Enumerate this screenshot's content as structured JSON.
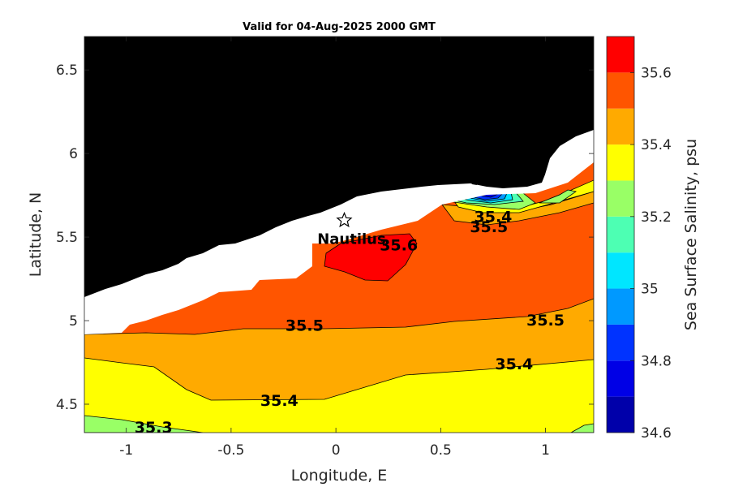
{
  "chart_data": {
    "type": "heatmap",
    "subtype": "filled-contour map",
    "title": "Valid for 04-Aug-2025 2000 GMT",
    "xlabel": "Longitude, E",
    "ylabel": "Latitude, N",
    "xlim": [
      -1.2,
      1.23
    ],
    "ylim": [
      4.33,
      6.7
    ],
    "xticks": [
      -1,
      -0.5,
      0,
      0.5,
      1
    ],
    "xtick_labels": [
      "-1",
      "-0.5",
      "0",
      "0.5",
      "1"
    ],
    "yticks": [
      4.5,
      5,
      5.5,
      6,
      6.5
    ],
    "ytick_labels": [
      "4.5",
      "5",
      "5.5",
      "6",
      "6.5"
    ],
    "land_color": "#000000",
    "grid": false,
    "colorbar": {
      "label": "Sea Surface Salinity, psu",
      "range": [
        34.6,
        35.7
      ],
      "ticks": [
        34.6,
        34.8,
        35,
        35.2,
        35.4,
        35.6
      ],
      "tick_labels": [
        "34.6",
        "34.8",
        "35",
        "35.2",
        "35.4",
        "35.6"
      ],
      "levels": [
        {
          "from": 34.6,
          "to": 34.7,
          "color": "#0000aa"
        },
        {
          "from": 34.7,
          "to": 34.8,
          "color": "#0000e6"
        },
        {
          "from": 34.8,
          "to": 34.9,
          "color": "#0033ff"
        },
        {
          "from": 34.9,
          "to": 35.0,
          "color": "#0099ff"
        },
        {
          "from": 35.0,
          "to": 35.1,
          "color": "#00e6ff"
        },
        {
          "from": 35.1,
          "to": 35.2,
          "color": "#4dffb3"
        },
        {
          "from": 35.2,
          "to": 35.3,
          "color": "#99ff66"
        },
        {
          "from": 35.3,
          "to": 35.4,
          "color": "#ffff00"
        },
        {
          "from": 35.4,
          "to": 35.5,
          "color": "#ffaa00"
        },
        {
          "from": 35.5,
          "to": 35.6,
          "color": "#ff5500"
        },
        {
          "from": 35.6,
          "to": 35.7,
          "color": "#ff0000"
        }
      ]
    },
    "contour_labels": [
      {
        "text": "35.6",
        "lon": 0.3,
        "lat": 5.42
      },
      {
        "text": "35.5",
        "lon": -0.15,
        "lat": 4.94
      },
      {
        "text": "35.5",
        "lon": 1.0,
        "lat": 4.97
      },
      {
        "text": "35.5",
        "lon": 0.73,
        "lat": 5.53
      },
      {
        "text": "35.4",
        "lon": 0.75,
        "lat": 5.59
      },
      {
        "text": "35.4",
        "lon": -0.27,
        "lat": 4.49
      },
      {
        "text": "35.4",
        "lon": 0.85,
        "lat": 4.71
      },
      {
        "text": "35.3",
        "lon": -0.87,
        "lat": 4.33
      }
    ],
    "markers": [
      {
        "label": "Nautilus",
        "lon": 0.04,
        "lat": 5.6,
        "symbol": "star"
      }
    ]
  }
}
